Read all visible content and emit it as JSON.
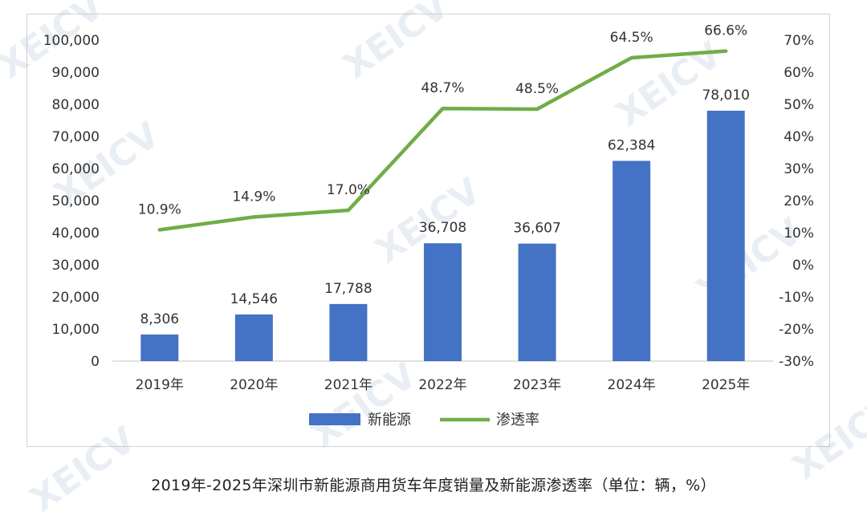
{
  "caption": "2019年-2025年深圳市新能源商用货车年度销量及新能源渗透率（单位：辆，%）",
  "watermark": {
    "text": "XEICV"
  },
  "colors": {
    "bar": "#4472c4",
    "line": "#70ad47",
    "text": "#333333",
    "axis": "#d9d9d9"
  },
  "chart_data": {
    "type": "bar+line",
    "categories": [
      "2019年",
      "2020年",
      "2021年",
      "2022年",
      "2023年",
      "2024年",
      "2025年"
    ],
    "series": [
      {
        "name": "新能源",
        "type": "bar",
        "axis": "left",
        "values": [
          8306,
          14546,
          17788,
          36708,
          36607,
          62384,
          78010
        ],
        "data_labels": [
          "8,306",
          "14,546",
          "17,788",
          "36,708",
          "36,607",
          "62,384",
          "78,010"
        ]
      },
      {
        "name": "渗透率",
        "type": "line",
        "axis": "right",
        "values": [
          10.9,
          14.9,
          17.0,
          48.7,
          48.5,
          64.5,
          66.6
        ],
        "data_labels": [
          "10.9%",
          "14.9%",
          "17.0%",
          "48.7%",
          "48.5%",
          "64.5%",
          "66.6%"
        ]
      }
    ],
    "y_left": {
      "ylim": [
        0,
        100000
      ],
      "ticks": [
        "0",
        "10,000",
        "20,000",
        "30,000",
        "40,000",
        "50,000",
        "60,000",
        "70,000",
        "80,000",
        "90,000",
        "100,000"
      ]
    },
    "y_right": {
      "ylim": [
        -30,
        70
      ],
      "ticks": [
        "-30%",
        "-20%",
        "-10%",
        "0%",
        "10%",
        "20%",
        "30%",
        "40%",
        "50%",
        "60%",
        "70%"
      ]
    },
    "grid": false,
    "legend": "bottom"
  }
}
